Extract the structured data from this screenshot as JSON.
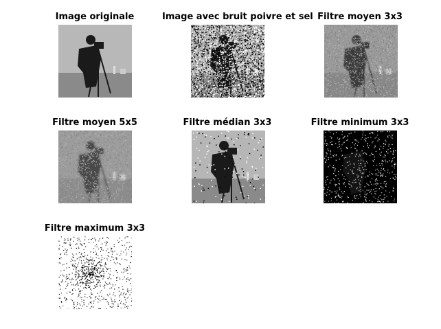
{
  "figure": {
    "panels": [
      {
        "title": "Image originale",
        "style": "original"
      },
      {
        "title": "Image avec bruit poivre et sel",
        "style": "saltpepper"
      },
      {
        "title": "Filtre moyen 3x3",
        "style": "mean3"
      },
      {
        "title": "Filtre moyen 5x5",
        "style": "mean5"
      },
      {
        "title": "Filtre médian 3x3",
        "style": "median"
      },
      {
        "title": "Filtre minimum 3x3",
        "style": "minimum"
      },
      {
        "title": "Filtre maximum 3x3",
        "style": "maximum"
      }
    ]
  },
  "colors": {
    "background": "#ffffff",
    "title": "#000000"
  }
}
